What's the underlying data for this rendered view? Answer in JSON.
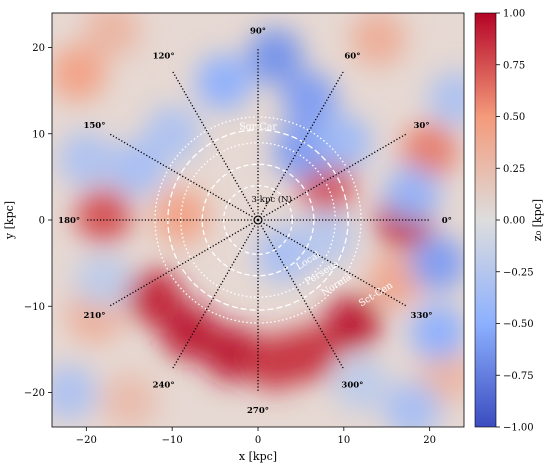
{
  "chart_data": {
    "type": "heatmap",
    "xlabel": "x [kpc]",
    "ylabel": "y [kpc]",
    "xlim": [
      -24,
      24
    ],
    "ylim": [
      -24,
      24
    ],
    "xticks": [
      -20,
      -10,
      0,
      10,
      20
    ],
    "yticks": [
      -20,
      -10,
      0,
      10,
      20
    ],
    "colorbar": {
      "label": "z₀ [kpc]",
      "min": -1.0,
      "max": 1.0,
      "ticks": [
        "1.00",
        "0.75",
        "0.50",
        "0.25",
        "0.00",
        "−0.25",
        "−0.50",
        "−0.75",
        "−1.00"
      ],
      "ticks_values": [
        1.0,
        0.75,
        0.5,
        0.25,
        0.0,
        -0.25,
        -0.5,
        -0.75,
        -1.0
      ],
      "colormap": "coolwarm",
      "colors": [
        "#3b4cc0",
        "#8db0fe",
        "#dddddd",
        "#f49a7b",
        "#b40426"
      ]
    },
    "sun_position": [
      0,
      0
    ],
    "angle_radius_kpc": 20,
    "angle_lines": [
      {
        "angle": 0,
        "label": "0°"
      },
      {
        "angle": 30,
        "label": "30°"
      },
      {
        "angle": 60,
        "label": "60°"
      },
      {
        "angle": 90,
        "label": "90°"
      },
      {
        "angle": 120,
        "label": "120°"
      },
      {
        "angle": 150,
        "label": "150°"
      },
      {
        "angle": 180,
        "label": "180°"
      },
      {
        "angle": 210,
        "label": "210°"
      },
      {
        "angle": 240,
        "label": "240°"
      },
      {
        "angle": 270,
        "label": "270°"
      },
      {
        "angle": 300,
        "label": "300°"
      },
      {
        "angle": 330,
        "label": "330°"
      }
    ],
    "arm_labels": [
      "Sgr-Car",
      "3-kpc (N)",
      "Local",
      "Perseus",
      "Norma",
      "Sct-Cen"
    ],
    "features": [
      {
        "x": -12,
        "y": -9,
        "z0": 0.9
      },
      {
        "x": -8,
        "y": -13,
        "z0": 0.95
      },
      {
        "x": -3,
        "y": -15.5,
        "z0": 0.95
      },
      {
        "x": 2,
        "y": -16.5,
        "z0": 0.85
      },
      {
        "x": 6,
        "y": -15.5,
        "z0": 0.85
      },
      {
        "x": 11,
        "y": -12,
        "z0": 0.95
      },
      {
        "x": 16,
        "y": -7,
        "z0": 0.4
      },
      {
        "x": -19,
        "y": -11,
        "z0": 0.35
      },
      {
        "x": -18,
        "y": 0.5,
        "z0": 0.75
      },
      {
        "x": -9,
        "y": 0.5,
        "z0": 0.45
      },
      {
        "x": 17,
        "y": 0,
        "z0": 0.9
      },
      {
        "x": 8,
        "y": 4,
        "z0": 0.75
      },
      {
        "x": 20,
        "y": 8,
        "z0": 0.6
      },
      {
        "x": -21,
        "y": 17,
        "z0": 0.45
      },
      {
        "x": 14,
        "y": 21,
        "z0": 0.35
      },
      {
        "x": -15,
        "y": -21,
        "z0": 0.25
      },
      {
        "x": 22,
        "y": -18,
        "z0": 0.3
      },
      {
        "x": 2,
        "y": 19,
        "z0": -0.65
      },
      {
        "x": -4,
        "y": 16,
        "z0": -0.5
      },
      {
        "x": 6,
        "y": 14,
        "z0": -0.6
      },
      {
        "x": 5,
        "y": 8,
        "z0": -0.6
      },
      {
        "x": 10,
        "y": 9,
        "z0": -0.4
      },
      {
        "x": -10,
        "y": 10,
        "z0": -0.3
      },
      {
        "x": -14,
        "y": 6,
        "z0": -0.35
      },
      {
        "x": -20,
        "y": 7,
        "z0": -0.3
      },
      {
        "x": 18,
        "y": 3,
        "z0": -0.45
      },
      {
        "x": 21,
        "y": -5,
        "z0": -0.6
      },
      {
        "x": 21,
        "y": -13,
        "z0": -0.5
      },
      {
        "x": 18,
        "y": -22,
        "z0": -0.35
      },
      {
        "x": -18,
        "y": -7,
        "z0": -0.2
      },
      {
        "x": -22,
        "y": -20,
        "z0": -0.3
      },
      {
        "x": 12,
        "y": -19,
        "z0": -0.2
      },
      {
        "x": 3,
        "y": -4,
        "z0": -0.35
      },
      {
        "x": 8,
        "y": -2,
        "z0": -0.25
      },
      {
        "x": -17,
        "y": 22,
        "z0": 0.3
      },
      {
        "x": 23,
        "y": 14,
        "z0": -0.3
      }
    ]
  }
}
